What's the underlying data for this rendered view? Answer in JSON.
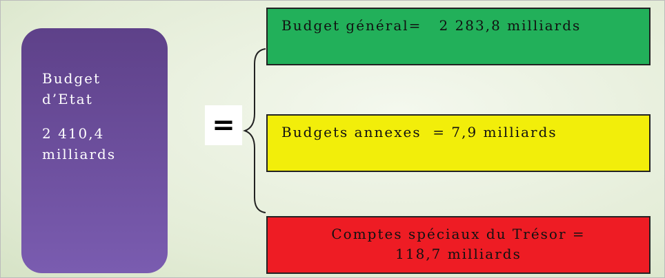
{
  "left": {
    "title": "Budget d’Etat",
    "amount": "2 410,4 milliards"
  },
  "operator": "=",
  "boxes": [
    {
      "label": "Budget général=   2 283,8 milliards"
    },
    {
      "label": "Budgets annexes  = 7,9 milliards"
    },
    {
      "label": "Comptes spéciaux du Trésor = 118,7 milliards"
    }
  ]
}
